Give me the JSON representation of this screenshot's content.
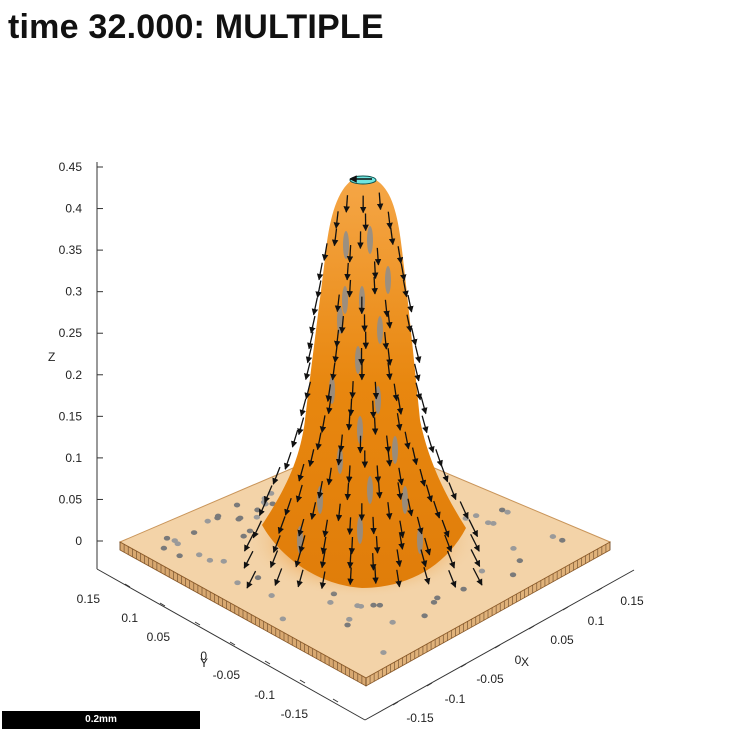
{
  "title": "time 32.000: MULTIPLE",
  "scale_bar": {
    "label": "0.2mm"
  },
  "colors": {
    "film": "#e8870f",
    "film_dark": "#c96f08",
    "substrate": "#f3d3a8",
    "substrate_edge": "#d8a870",
    "arrow": "#111111",
    "grain": "#8a8a8a",
    "tip": "#6fe6e0"
  },
  "chart_data": {
    "type": "surface",
    "title": "time 32.000: MULTIPLE",
    "xlabel": "X",
    "ylabel": "Y",
    "zlabel": "Z",
    "xlim": [
      -0.17,
      0.17
    ],
    "ylim": [
      -0.17,
      0.17
    ],
    "zlim": [
      0,
      0.45
    ],
    "x_ticks": [
      "-0.15",
      "-0.1",
      "-0.05",
      "0",
      "0.05",
      "0.1",
      "0.15"
    ],
    "y_ticks": [
      "0.15",
      "0.1",
      "0.05",
      "0",
      "-0.05",
      "-0.1",
      "-0.15"
    ],
    "z_ticks": [
      "0",
      "0.05",
      "0.1",
      "0.15",
      "0.2",
      "0.25",
      "0.3",
      "0.35",
      "0.4",
      "0.45"
    ],
    "peak": {
      "x": 0,
      "y": 0,
      "z": 0.44
    },
    "grid": false,
    "vectors": "downward-pointing arrows over surface"
  }
}
